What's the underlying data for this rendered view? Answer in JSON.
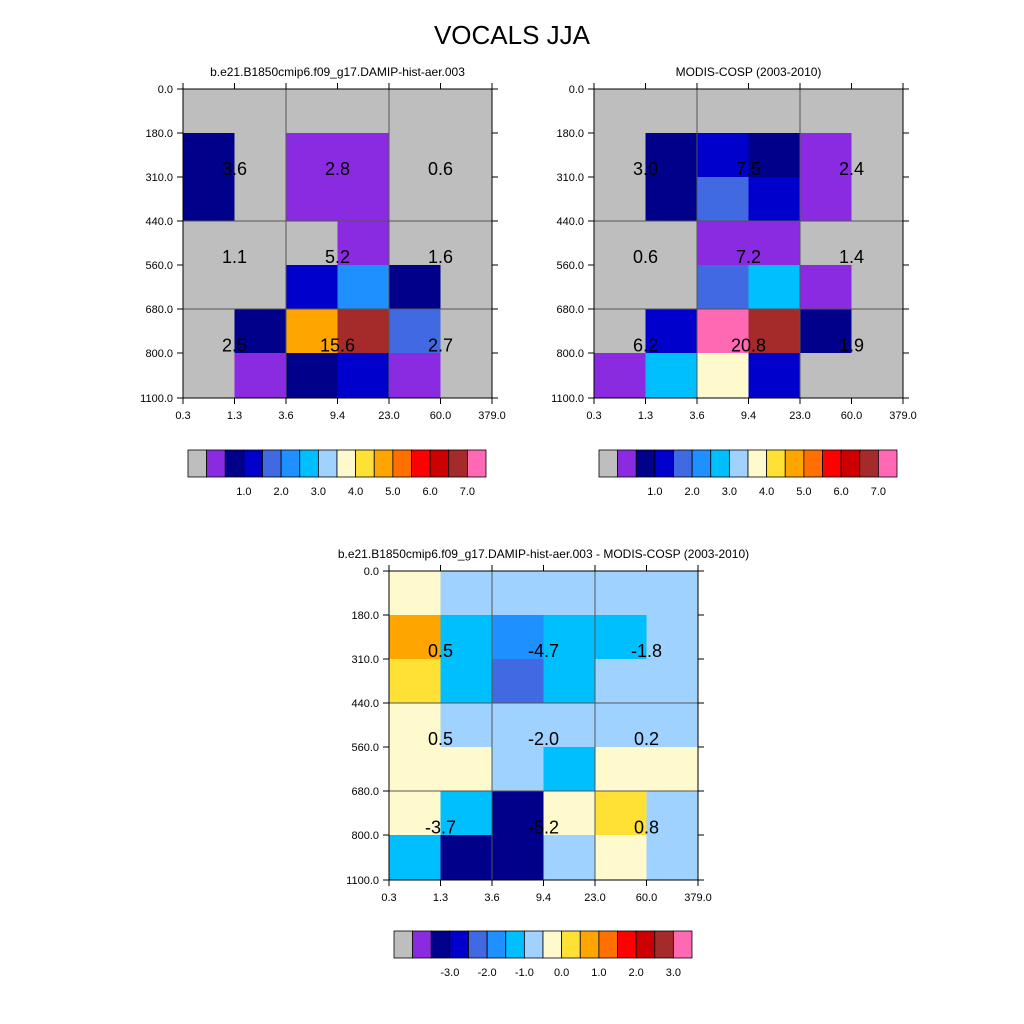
{
  "page_title": "VOCALS JJA",
  "panels": [
    {
      "title": "b.e21.B1850cmip6.f09_g17.DAMIP-hist-aer.003",
      "x_ticks": [
        "0.3",
        "1.3",
        "3.6",
        "9.4",
        "23.0",
        "60.0",
        "379.0"
      ],
      "y_ticks": [
        "0.0",
        "180.0",
        "310.0",
        "440.0",
        "560.0",
        "680.0",
        "800.0",
        "1100.0"
      ],
      "colorbar": {
        "colors": [
          "#BEBEBE",
          "#8A2BE2",
          "#00008B",
          "#0000CD",
          "#4169E1",
          "#1E90FF",
          "#00BFFF",
          "#A0D2FF",
          "#FFFACD",
          "#FFE135",
          "#FFA500",
          "#FF7000",
          "#FF0000",
          "#CC0000",
          "#A52A2A",
          "#FF69B4"
        ],
        "labels": [
          "1.0",
          "2.0",
          "3.0",
          "4.0",
          "5.0",
          "6.0",
          "7.0"
        ]
      },
      "cells": [
        [
          "#BEBEBE",
          "#BEBEBE",
          "#BEBEBE",
          "#BEBEBE",
          "#BEBEBE",
          "#BEBEBE"
        ],
        [
          "#00008B",
          "#BEBEBE",
          "#8A2BE2",
          "#8A2BE2",
          "#BEBEBE",
          "#BEBEBE"
        ],
        [
          "#00008B",
          "#BEBEBE",
          "#8A2BE2",
          "#8A2BE2",
          "#BEBEBE",
          "#BEBEBE"
        ],
        [
          "#BEBEBE",
          "#BEBEBE",
          "#BEBEBE",
          "#8A2BE2",
          "#BEBEBE",
          "#BEBEBE"
        ],
        [
          "#BEBEBE",
          "#BEBEBE",
          "#0000CD",
          "#1E90FF",
          "#00008B",
          "#BEBEBE"
        ],
        [
          "#BEBEBE",
          "#00008B",
          "#FFA500",
          "#A52A2A",
          "#4169E1",
          "#BEBEBE"
        ],
        [
          "#BEBEBE",
          "#8A2BE2",
          "#00008B",
          "#0000CD",
          "#8A2BE2",
          "#BEBEBE"
        ]
      ],
      "values": [
        [
          "3.6",
          "2.8",
          "0.6"
        ],
        [
          "1.1",
          "5.2",
          "1.6"
        ],
        [
          "2.5",
          "15.6",
          "2.7"
        ]
      ]
    },
    {
      "title": "MODIS-COSP (2003-2010)",
      "x_ticks": [
        "0.3",
        "1.3",
        "3.6",
        "9.4",
        "23.0",
        "60.0",
        "379.0"
      ],
      "y_ticks": [
        "0.0",
        "180.0",
        "310.0",
        "440.0",
        "560.0",
        "680.0",
        "800.0",
        "1100.0"
      ],
      "colorbar": {
        "colors": [
          "#BEBEBE",
          "#8A2BE2",
          "#00008B",
          "#0000CD",
          "#4169E1",
          "#1E90FF",
          "#00BFFF",
          "#A0D2FF",
          "#FFFACD",
          "#FFE135",
          "#FFA500",
          "#FF7000",
          "#FF0000",
          "#CC0000",
          "#A52A2A",
          "#FF69B4"
        ],
        "labels": [
          "1.0",
          "2.0",
          "3.0",
          "4.0",
          "5.0",
          "6.0",
          "7.0"
        ]
      },
      "cells": [
        [
          "#BEBEBE",
          "#BEBEBE",
          "#BEBEBE",
          "#BEBEBE",
          "#BEBEBE",
          "#BEBEBE"
        ],
        [
          "#BEBEBE",
          "#00008B",
          "#0000CD",
          "#00008B",
          "#8A2BE2",
          "#BEBEBE"
        ],
        [
          "#BEBEBE",
          "#00008B",
          "#4169E1",
          "#0000CD",
          "#8A2BE2",
          "#BEBEBE"
        ],
        [
          "#BEBEBE",
          "#BEBEBE",
          "#8A2BE2",
          "#8A2BE2",
          "#BEBEBE",
          "#BEBEBE"
        ],
        [
          "#BEBEBE",
          "#BEBEBE",
          "#4169E1",
          "#00BFFF",
          "#8A2BE2",
          "#BEBEBE"
        ],
        [
          "#BEBEBE",
          "#0000CD",
          "#FF69B4",
          "#A52A2A",
          "#00008B",
          "#BEBEBE"
        ],
        [
          "#8A2BE2",
          "#00BFFF",
          "#FFFACD",
          "#0000CD",
          "#BEBEBE",
          "#BEBEBE"
        ]
      ],
      "values": [
        [
          "3.0",
          "7.5",
          "2.4"
        ],
        [
          "0.6",
          "7.2",
          "1.4"
        ],
        [
          "6.2",
          "20.8",
          "1.9"
        ]
      ]
    },
    {
      "title": "b.e21.B1850cmip6.f09_g17.DAMIP-hist-aer.003 - MODIS-COSP (2003-2010)",
      "x_ticks": [
        "0.3",
        "1.3",
        "3.6",
        "9.4",
        "23.0",
        "60.0",
        "379.0"
      ],
      "y_ticks": [
        "0.0",
        "180.0",
        "310.0",
        "440.0",
        "560.0",
        "680.0",
        "800.0",
        "1100.0"
      ],
      "colorbar": {
        "colors": [
          "#BEBEBE",
          "#8A2BE2",
          "#00008B",
          "#0000CD",
          "#4169E1",
          "#1E90FF",
          "#00BFFF",
          "#A0D2FF",
          "#FFFACD",
          "#FFE135",
          "#FFA500",
          "#FF7000",
          "#FF0000",
          "#CC0000",
          "#A52A2A",
          "#FF69B4"
        ],
        "labels": [
          "-3.0",
          "-2.0",
          "-1.0",
          "0.0",
          "1.0",
          "2.0",
          "3.0"
        ]
      },
      "cells": [
        [
          "#FFFACD",
          "#A0D2FF",
          "#A0D2FF",
          "#A0D2FF",
          "#A0D2FF",
          "#A0D2FF"
        ],
        [
          "#FFA500",
          "#00BFFF",
          "#1E90FF",
          "#00BFFF",
          "#00BFFF",
          "#A0D2FF"
        ],
        [
          "#FFE135",
          "#00BFFF",
          "#4169E1",
          "#00BFFF",
          "#A0D2FF",
          "#A0D2FF"
        ],
        [
          "#FFFACD",
          "#A0D2FF",
          "#A0D2FF",
          "#A0D2FF",
          "#A0D2FF",
          "#A0D2FF"
        ],
        [
          "#FFFACD",
          "#FFFACD",
          "#A0D2FF",
          "#00BFFF",
          "#FFFACD",
          "#FFFACD"
        ],
        [
          "#FFFACD",
          "#00BFFF",
          "#00008B",
          "#FFFACD",
          "#FFE135",
          "#A0D2FF"
        ],
        [
          "#00BFFF",
          "#00008B",
          "#00008B",
          "#A0D2FF",
          "#FFFACD",
          "#A0D2FF"
        ]
      ],
      "values": [
        [
          "0.5",
          "-4.7",
          "-1.8"
        ],
        [
          "0.5",
          "-2.0",
          "0.2"
        ],
        [
          "-3.7",
          "-5.2",
          "0.8"
        ]
      ]
    }
  ],
  "chart_data": [
    {
      "type": "heatmap",
      "title": "b.e21.B1850cmip6.f09_g17.DAMIP-hist-aer.003",
      "x_ticks": [
        "0.3",
        "1.3",
        "3.6",
        "9.4",
        "23.0",
        "60.0",
        "379.0"
      ],
      "y_ticks": [
        "0.0",
        "180.0",
        "310.0",
        "440.0",
        "560.0",
        "680.0",
        "800.0",
        "1100.0"
      ],
      "values": [
        [
          3.6,
          2.8,
          0.6
        ],
        [
          1.1,
          5.2,
          1.6
        ],
        [
          2.5,
          15.6,
          2.7
        ]
      ],
      "colorbar_labels": [
        "1.0",
        "2.0",
        "3.0",
        "4.0",
        "5.0",
        "6.0",
        "7.0"
      ]
    },
    {
      "type": "heatmap",
      "title": "MODIS-COSP (2003-2010)",
      "x_ticks": [
        "0.3",
        "1.3",
        "3.6",
        "9.4",
        "23.0",
        "60.0",
        "379.0"
      ],
      "y_ticks": [
        "0.0",
        "180.0",
        "310.0",
        "440.0",
        "560.0",
        "680.0",
        "800.0",
        "1100.0"
      ],
      "values": [
        [
          3.0,
          7.5,
          2.4
        ],
        [
          0.6,
          7.2,
          1.4
        ],
        [
          6.2,
          20.8,
          1.9
        ]
      ],
      "colorbar_labels": [
        "1.0",
        "2.0",
        "3.0",
        "4.0",
        "5.0",
        "6.0",
        "7.0"
      ]
    },
    {
      "type": "heatmap",
      "title": "b.e21.B1850cmip6.f09_g17.DAMIP-hist-aer.003 - MODIS-COSP (2003-2010)",
      "x_ticks": [
        "0.3",
        "1.3",
        "3.6",
        "9.4",
        "23.0",
        "60.0",
        "379.0"
      ],
      "y_ticks": [
        "0.0",
        "180.0",
        "310.0",
        "440.0",
        "560.0",
        "680.0",
        "800.0",
        "1100.0"
      ],
      "values": [
        [
          0.5,
          -4.7,
          -1.8
        ],
        [
          0.5,
          -2.0,
          0.2
        ],
        [
          -3.7,
          -5.2,
          0.8
        ]
      ],
      "colorbar_labels": [
        "-3.0",
        "-2.0",
        "-1.0",
        "0.0",
        "1.0",
        "2.0",
        "3.0"
      ]
    }
  ]
}
